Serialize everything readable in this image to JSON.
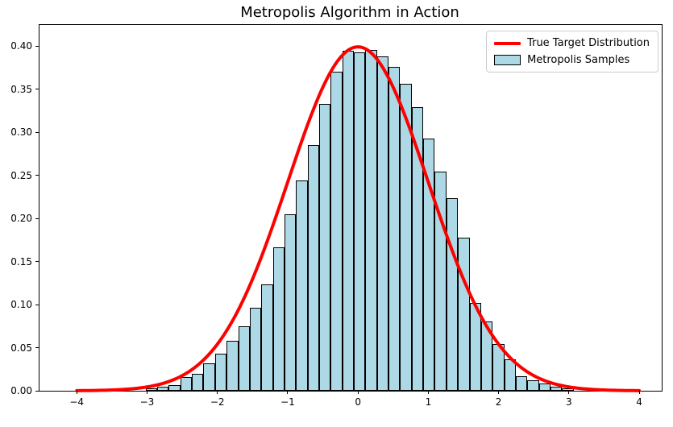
{
  "title": "Metropolis Algorithm in Action",
  "legend": {
    "items": [
      {
        "label": "True Target Distribution",
        "swatch": "line",
        "color": "#ff0000"
      },
      {
        "label": "Metropolis Samples",
        "swatch": "patch",
        "fill": "#add8e6",
        "edge": "#000000"
      }
    ]
  },
  "colors": {
    "curve": "#ff0000",
    "bar_fill": "#add8e6",
    "bar_edge": "#000000",
    "background": "#ffffff",
    "axis": "#000000"
  },
  "chart_data": {
    "type": "bar",
    "subtype": "histogram-with-density-curve",
    "title": "Metropolis Algorithm in Action",
    "xlabel": "",
    "ylabel": "",
    "xlim": [
      -4.53,
      4.32
    ],
    "ylim": [
      0,
      0.4243
    ],
    "grid": false,
    "legend_position": "upper right",
    "x_ticks": [
      {
        "v": -4,
        "label": "−4"
      },
      {
        "v": -3,
        "label": "−3"
      },
      {
        "v": -2,
        "label": "−2"
      },
      {
        "v": -1,
        "label": "−1"
      },
      {
        "v": 0,
        "label": "0"
      },
      {
        "v": 1,
        "label": "1"
      },
      {
        "v": 2,
        "label": "2"
      },
      {
        "v": 3,
        "label": "3"
      },
      {
        "v": 4,
        "label": "4"
      }
    ],
    "y_ticks": [
      {
        "v": 0.0,
        "label": "0.00"
      },
      {
        "v": 0.05,
        "label": "0.05"
      },
      {
        "v": 0.1,
        "label": "0.10"
      },
      {
        "v": 0.15,
        "label": "0.15"
      },
      {
        "v": 0.2,
        "label": "0.20"
      },
      {
        "v": 0.25,
        "label": "0.25"
      },
      {
        "v": 0.3,
        "label": "0.30"
      },
      {
        "v": 0.35,
        "label": "0.35"
      },
      {
        "v": 0.4,
        "label": "0.40"
      }
    ],
    "histogram": {
      "name": "Metropolis Samples",
      "bin_start": -3.02,
      "bin_width": 0.1645,
      "densities": [
        0.003,
        0.005,
        0.007,
        0.016,
        0.02,
        0.032,
        0.043,
        0.058,
        0.075,
        0.096,
        0.123,
        0.166,
        0.205,
        0.244,
        0.285,
        0.333,
        0.37,
        0.394,
        0.393,
        0.395,
        0.388,
        0.376,
        0.356,
        0.329,
        0.293,
        0.254,
        0.223,
        0.178,
        0.102,
        0.08,
        0.054,
        0.036,
        0.017,
        0.012,
        0.008,
        0.005,
        0.003
      ]
    },
    "curve": {
      "name": "True Target Distribution",
      "distribution": "normal",
      "mean": 0,
      "std": 1,
      "x_min": -4,
      "x_max": 4,
      "peak_density": 0.3989,
      "linewidth": 4
    }
  }
}
